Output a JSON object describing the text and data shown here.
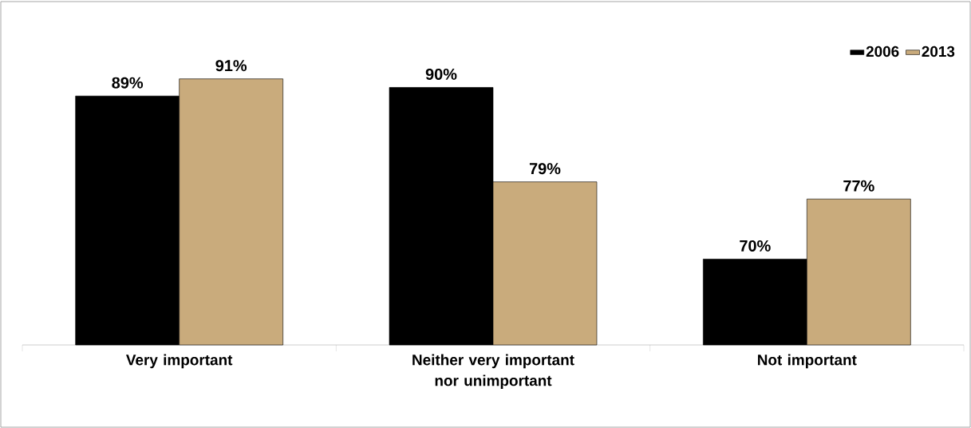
{
  "chart_data": {
    "type": "bar",
    "categories": [
      "Very important",
      "Neither very important nor unimportant",
      "Not important"
    ],
    "series": [
      {
        "name": "2006",
        "color": "#000000",
        "values": [
          89,
          90,
          70
        ],
        "value_labels": [
          "89%",
          "90%",
          "70%"
        ]
      },
      {
        "name": "2013",
        "color": "#c9ab7c",
        "values": [
          91,
          79,
          77
        ],
        "value_labels": [
          "91%",
          "79%",
          "77%"
        ]
      }
    ],
    "ylim": [
      60,
      100
    ],
    "legend": "top right"
  }
}
